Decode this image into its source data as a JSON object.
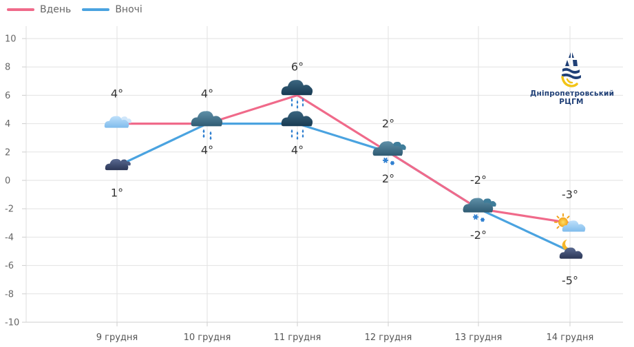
{
  "legend": {
    "day_label": "Вдень",
    "night_label": "Вночі",
    "day_color": "#f06a8a",
    "night_color": "#4aa3e0"
  },
  "logo": {
    "line1": "Дніпропетровський",
    "line2": "РЦГМ"
  },
  "chart_data": {
    "type": "line",
    "categories": [
      "9 грудня",
      "10 грудня",
      "11 грудня",
      "12 грудня",
      "13 грудня",
      "14 грудня"
    ],
    "series": [
      {
        "name": "Вдень",
        "values": [
          4,
          4,
          6,
          2,
          -2,
          -3
        ],
        "color": "#f06a8a",
        "point_labels": [
          "4°",
          "4°",
          "6°",
          "2°",
          "-2°",
          "-3°"
        ],
        "icons": [
          "light-cloud-icon",
          "cloud-rain-icon",
          "dark-cloud-rain-icon",
          "cloud-snow-icon",
          "cloud-snow-icon",
          "sun-cloud-icon"
        ]
      },
      {
        "name": "Вночі",
        "values": [
          1,
          4,
          4,
          2,
          -2,
          -5
        ],
        "color": "#4aa3e0",
        "point_labels": [
          "1°",
          "4°",
          "4°",
          "2°",
          "-2°",
          "-5°"
        ],
        "icons": [
          "dark-cloud-icon",
          "cloud-rain-icon",
          "dark-cloud-rain-icon",
          "cloud-snow-icon",
          "cloud-snow-icon",
          "moon-cloud-icon"
        ]
      }
    ],
    "yticks": [
      "10",
      "8",
      "6",
      "4",
      "2",
      "0",
      "-2",
      "-4",
      "-6",
      "-8",
      "-10"
    ],
    "ylim": [
      -10,
      10
    ],
    "grid": true,
    "legend_position": "top-left",
    "title": "",
    "xlabel": "",
    "ylabel": ""
  }
}
